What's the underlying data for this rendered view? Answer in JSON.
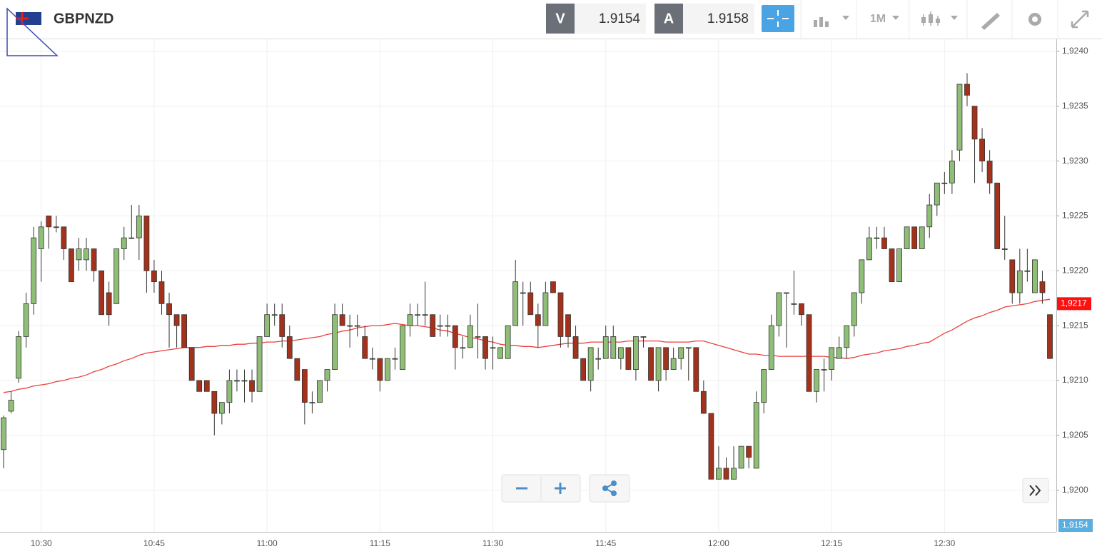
{
  "toolbar": {
    "symbol": "GBPNZD",
    "bid_tag": "V",
    "bid": "1.9154",
    "ask_tag": "A",
    "ask": "1.9158",
    "timeframe": "1M"
  },
  "chart_data": {
    "type": "candlestick",
    "title": "GBPNZD",
    "categories": [
      null,
      null,
      null,
      null,
      null,
      "10:30",
      null,
      null,
      null,
      null,
      null,
      null,
      null,
      null,
      null,
      null,
      null,
      null,
      null,
      null,
      "10:45",
      null,
      null,
      null,
      null,
      null,
      null,
      null,
      null,
      null,
      null,
      null,
      null,
      null,
      null,
      "11:00",
      null,
      null,
      null,
      null,
      null,
      null,
      null,
      null,
      null,
      null,
      null,
      null,
      null,
      null,
      "11:15",
      null,
      null,
      null,
      null,
      null,
      null,
      null,
      null,
      null,
      null,
      null,
      null,
      null,
      null,
      "11:30",
      null,
      null,
      null,
      null,
      null,
      null,
      null,
      null,
      null,
      null,
      null,
      null,
      null,
      null,
      "11:45",
      null,
      null,
      null,
      null,
      null,
      null,
      null,
      null,
      null,
      null,
      null,
      null,
      null,
      null,
      "12:00",
      null,
      null,
      null,
      null,
      null,
      null,
      null,
      null,
      null,
      null,
      null,
      null,
      null,
      null,
      "12:15",
      null,
      null,
      null,
      null,
      null,
      null,
      null,
      null,
      null,
      null,
      null,
      null,
      null,
      null,
      "12:30",
      null,
      null,
      null,
      null,
      null,
      null,
      null,
      null,
      null,
      null,
      null,
      null,
      null,
      null
    ],
    "open": [
      1.92037,
      1.92072,
      1.92102,
      1.9214,
      1.9217,
      1.9222,
      1.9225,
      1.9224,
      1.9224,
      1.9222,
      1.9221,
      1.9221,
      1.9222,
      1.922,
      1.9218,
      1.9217,
      1.9222,
      1.9223,
      1.9223,
      1.9225,
      1.922,
      1.9219,
      1.9217,
      1.9216,
      1.9216,
      1.9213,
      1.921,
      1.921,
      1.9209,
      1.9207,
      1.9208,
      1.921,
      1.921,
      1.921,
      1.9209,
      1.9214,
      1.9216,
      1.9216,
      1.9214,
      1.9212,
      1.9211,
      1.9208,
      1.9208,
      1.921,
      1.9211,
      1.9216,
      1.9215,
      1.9215,
      1.9214,
      1.9212,
      1.9212,
      1.921,
      1.9212,
      1.9211,
      1.9215,
      1.9216,
      1.9216,
      1.9216,
      1.9215,
      1.9215,
      1.9215,
      1.9213,
      1.9213,
      1.9214,
      1.9214,
      1.9213,
      1.9212,
      1.9212,
      1.9215,
      1.9218,
      1.9218,
      1.9216,
      1.9215,
      1.9219,
      1.9218,
      1.9216,
      1.9214,
      1.9212,
      1.921,
      1.9212,
      1.9212,
      1.9212,
      1.9212,
      1.9213,
      1.9211,
      1.9214,
      1.9213,
      1.921,
      1.9213,
      1.9211,
      1.9212,
      1.9213,
      1.9213,
      1.9209,
      1.9207,
      1.9201,
      1.9202,
      1.9201,
      1.9202,
      1.9204,
      1.9202,
      1.9208,
      1.9211,
      1.9215,
      1.9218,
      1.9217,
      1.9217,
      1.9216,
      1.9209,
      1.9211,
      1.9211,
      1.9212,
      1.9213,
      1.9215,
      1.9218,
      1.9221,
      1.9223,
      1.9223,
      1.9222,
      1.9219,
      1.9222,
      1.9224,
      1.9222,
      1.9224,
      1.9226,
      1.9228,
      1.9228,
      1.9231,
      1.9237,
      1.9235,
      1.9232,
      1.923,
      1.9228,
      1.9222,
      1.9221,
      1.9218,
      1.922,
      1.9218,
      1.9219,
      1.9216
    ],
    "high": [
      1.92068,
      1.9209,
      1.92145,
      1.9218,
      1.9224,
      1.92245,
      1.9225,
      1.9225,
      1.9224,
      1.9222,
      1.9223,
      1.9223,
      1.9222,
      1.922,
      1.9219,
      1.9222,
      1.9224,
      1.9226,
      1.9226,
      1.9225,
      1.9221,
      1.922,
      1.9218,
      1.9216,
      1.9216,
      1.9213,
      1.921,
      1.921,
      1.9209,
      1.9208,
      1.9211,
      1.9211,
      1.9211,
      1.9211,
      1.9214,
      1.9217,
      1.9217,
      1.9217,
      1.9215,
      1.9212,
      1.9211,
      1.9209,
      1.921,
      1.9211,
      1.9217,
      1.9217,
      1.9216,
      1.9216,
      1.9215,
      1.9213,
      1.9212,
      1.9212,
      1.9213,
      1.9215,
      1.9217,
      1.9217,
      1.9219,
      1.9216,
      1.9216,
      1.9216,
      1.9215,
      1.9214,
      1.9216,
      1.9217,
      1.9214,
      1.9214,
      1.9213,
      1.9215,
      1.9221,
      1.9219,
      1.9219,
      1.9217,
      1.9219,
      1.9219,
      1.9218,
      1.9216,
      1.9215,
      1.9212,
      1.9213,
      1.9213,
      1.9215,
      1.9215,
      1.9213,
      1.9213,
      1.9214,
      1.9214,
      1.9213,
      1.9213,
      1.9213,
      1.9213,
      1.9213,
      1.9213,
      1.9213,
      1.921,
      1.9207,
      1.9204,
      1.9203,
      1.9204,
      1.9204,
      1.9204,
      1.9209,
      1.9211,
      1.9216,
      1.9218,
      1.9218,
      1.922,
      1.9217,
      1.9216,
      1.9211,
      1.9212,
      1.9213,
      1.9214,
      1.9215,
      1.9218,
      1.9221,
      1.9224,
      1.9224,
      1.9224,
      1.9222,
      1.9222,
      1.9224,
      1.9224,
      1.9224,
      1.9227,
      1.9228,
      1.9229,
      1.9231,
      1.9237,
      1.9238,
      1.9235,
      1.9233,
      1.9231,
      1.9228,
      1.9225,
      1.9221,
      1.9222,
      1.9222,
      1.9221,
      1.922,
      1.9216
    ],
    "low": [
      1.9202,
      1.9207,
      1.92098,
      1.9213,
      1.9216,
      1.9219,
      1.9222,
      1.92235,
      1.9221,
      1.9219,
      1.922,
      1.922,
      1.9219,
      1.9216,
      1.9215,
      1.9217,
      1.9221,
      1.9223,
      1.9221,
      1.9218,
      1.9218,
      1.9216,
      1.9213,
      1.9213,
      1.9213,
      1.921,
      1.9209,
      1.9209,
      1.9205,
      1.9206,
      1.9207,
      1.9209,
      1.9208,
      1.9208,
      1.9209,
      1.9214,
      1.9215,
      1.9213,
      1.9212,
      1.921,
      1.9206,
      1.9207,
      1.9208,
      1.9209,
      1.9211,
      1.9215,
      1.9213,
      1.9214,
      1.9212,
      1.9211,
      1.9209,
      1.921,
      1.9211,
      1.9211,
      1.9214,
      1.9215,
      1.9215,
      1.9214,
      1.9214,
      1.9214,
      1.9211,
      1.9212,
      1.9213,
      1.9212,
      1.9211,
      1.9211,
      1.9212,
      1.9212,
      1.9215,
      1.9215,
      1.9216,
      1.9213,
      1.9215,
      1.9218,
      1.9213,
      1.9213,
      1.9212,
      1.921,
      1.9209,
      1.9211,
      1.9212,
      1.9212,
      1.9211,
      1.9211,
      1.921,
      1.9213,
      1.921,
      1.9209,
      1.921,
      1.9211,
      1.9211,
      1.921,
      1.9209,
      1.9207,
      1.9201,
      1.9201,
      1.9201,
      1.9201,
      1.9202,
      1.9202,
      1.9202,
      1.9207,
      1.9211,
      1.9214,
      1.9213,
      1.9216,
      1.9215,
      1.9209,
      1.9208,
      1.9209,
      1.921,
      1.9212,
      1.9212,
      1.9214,
      1.9217,
      1.9221,
      1.9222,
      1.9222,
      1.9219,
      1.9219,
      1.9222,
      1.9222,
      1.9222,
      1.9223,
      1.9225,
      1.9227,
      1.9227,
      1.923,
      1.9235,
      1.9228,
      1.9229,
      1.9227,
      1.9222,
      1.9221,
      1.9217,
      1.9217,
      1.9219,
      1.9218,
      1.9217,
      1.9212
    ],
    "close": [
      1.92066,
      1.92082,
      1.9214,
      1.9217,
      1.9223,
      1.9224,
      1.9224,
      1.9224,
      1.9222,
      1.9219,
      1.9222,
      1.9222,
      1.922,
      1.9216,
      1.9216,
      1.9222,
      1.9223,
      1.9223,
      1.9225,
      1.922,
      1.9219,
      1.9217,
      1.9216,
      1.9215,
      1.9213,
      1.921,
      1.9209,
      1.9209,
      1.9207,
      1.9208,
      1.921,
      1.921,
      1.921,
      1.9209,
      1.9214,
      1.9216,
      1.9216,
      1.9214,
      1.9212,
      1.921,
      1.9208,
      1.9208,
      1.921,
      1.9211,
      1.9216,
      1.9215,
      1.9215,
      1.9215,
      1.9212,
      1.9212,
      1.921,
      1.9212,
      1.9212,
      1.9215,
      1.9216,
      1.9216,
      1.9216,
      1.9214,
      1.9215,
      1.9215,
      1.9213,
      1.9213,
      1.9215,
      1.9214,
      1.9212,
      1.9213,
      1.9213,
      1.9215,
      1.9219,
      1.9218,
      1.9216,
      1.9215,
      1.9218,
      1.9218,
      1.9214,
      1.9214,
      1.9212,
      1.921,
      1.9213,
      1.9212,
      1.9214,
      1.9214,
      1.9213,
      1.9211,
      1.9214,
      1.9214,
      1.921,
      1.9213,
      1.9211,
      1.9212,
      1.9213,
      1.9213,
      1.9209,
      1.9207,
      1.9201,
      1.9202,
      1.9201,
      1.9202,
      1.9204,
      1.9203,
      1.9208,
      1.9211,
      1.9215,
      1.9218,
      1.9218,
      1.9217,
      1.9216,
      1.9209,
      1.9211,
      1.9211,
      1.9213,
      1.9213,
      1.9215,
      1.9218,
      1.9221,
      1.9223,
      1.9223,
      1.9222,
      1.9219,
      1.9222,
      1.9224,
      1.9222,
      1.9224,
      1.9226,
      1.9228,
      1.9228,
      1.923,
      1.9237,
      1.9236,
      1.9232,
      1.923,
      1.9228,
      1.9222,
      1.9222,
      1.9218,
      1.922,
      1.922,
      1.9221,
      1.9218,
      1.9212
    ],
    "up_color": "#8fbf76",
    "down_color": "#a2321c",
    "ma": {
      "color": "#e8403c",
      "values": [
        1.92089,
        1.9209,
        1.92092,
        1.92093,
        1.92095,
        1.92096,
        1.92097,
        1.92099,
        1.921,
        1.92102,
        1.92103,
        1.92105,
        1.92108,
        1.9211,
        1.92113,
        1.92115,
        1.92118,
        1.9212,
        1.92123,
        1.92125,
        1.92126,
        1.92127,
        1.92128,
        1.92129,
        1.9213,
        1.9213,
        1.9213,
        1.92131,
        1.92131,
        1.92132,
        1.92132,
        1.92133,
        1.92133,
        1.92134,
        1.92134,
        1.92135,
        1.92135,
        1.92136,
        1.92136,
        1.92137,
        1.92138,
        1.92139,
        1.9214,
        1.92142,
        1.92143,
        1.92145,
        1.92146,
        1.92148,
        1.92149,
        1.9215,
        1.9215,
        1.92151,
        1.92152,
        1.92151,
        1.9215,
        1.9215,
        1.92149,
        1.92148,
        1.92146,
        1.92145,
        1.92143,
        1.92141,
        1.92139,
        1.92138,
        1.92136,
        1.92135,
        1.92133,
        1.92132,
        1.92132,
        1.92131,
        1.92131,
        1.9213,
        1.92131,
        1.92132,
        1.92133,
        1.92134,
        1.92134,
        1.92134,
        1.92135,
        1.92135,
        1.92135,
        1.92135,
        1.92135,
        1.92136,
        1.92136,
        1.92136,
        1.92136,
        1.92136,
        1.92135,
        1.92135,
        1.92135,
        1.92135,
        1.92136,
        1.92136,
        1.92134,
        1.92132,
        1.9213,
        1.92128,
        1.92126,
        1.92124,
        1.92124,
        1.92123,
        1.92123,
        1.92122,
        1.92122,
        1.92122,
        1.92122,
        1.92122,
        1.92122,
        1.92122,
        1.92121,
        1.92121,
        1.9212,
        1.92121,
        1.92123,
        1.92124,
        1.92125,
        1.92127,
        1.92128,
        1.92129,
        1.92131,
        1.92132,
        1.92134,
        1.92135,
        1.92139,
        1.92143,
        1.92146,
        1.9215,
        1.92154,
        1.92157,
        1.92159,
        1.92162,
        1.92164,
        1.92167,
        1.92168,
        1.92169,
        1.9217,
        1.92172,
        1.92173,
        1.92174
      ]
    },
    "ylim": [
      1.91962,
      1.92411
    ],
    "yticks": [
      {
        "value": 1.92,
        "label": "1,9200"
      },
      {
        "value": 1.9205,
        "label": "1,9205"
      },
      {
        "value": 1.921,
        "label": "1,9210"
      },
      {
        "value": 1.9215,
        "label": "1,9215"
      },
      {
        "value": 1.922,
        "label": "1,9220"
      },
      {
        "value": 1.9225,
        "label": "1,9225"
      },
      {
        "value": 1.923,
        "label": "1,9230"
      },
      {
        "value": 1.9235,
        "label": "1,9235"
      },
      {
        "value": 1.924,
        "label": "1,9240"
      }
    ],
    "grid": true,
    "last_price": {
      "value": 1.9217,
      "label": "1,9217"
    },
    "bid_marker": {
      "value": 1.9154,
      "label": "1,9154"
    }
  }
}
